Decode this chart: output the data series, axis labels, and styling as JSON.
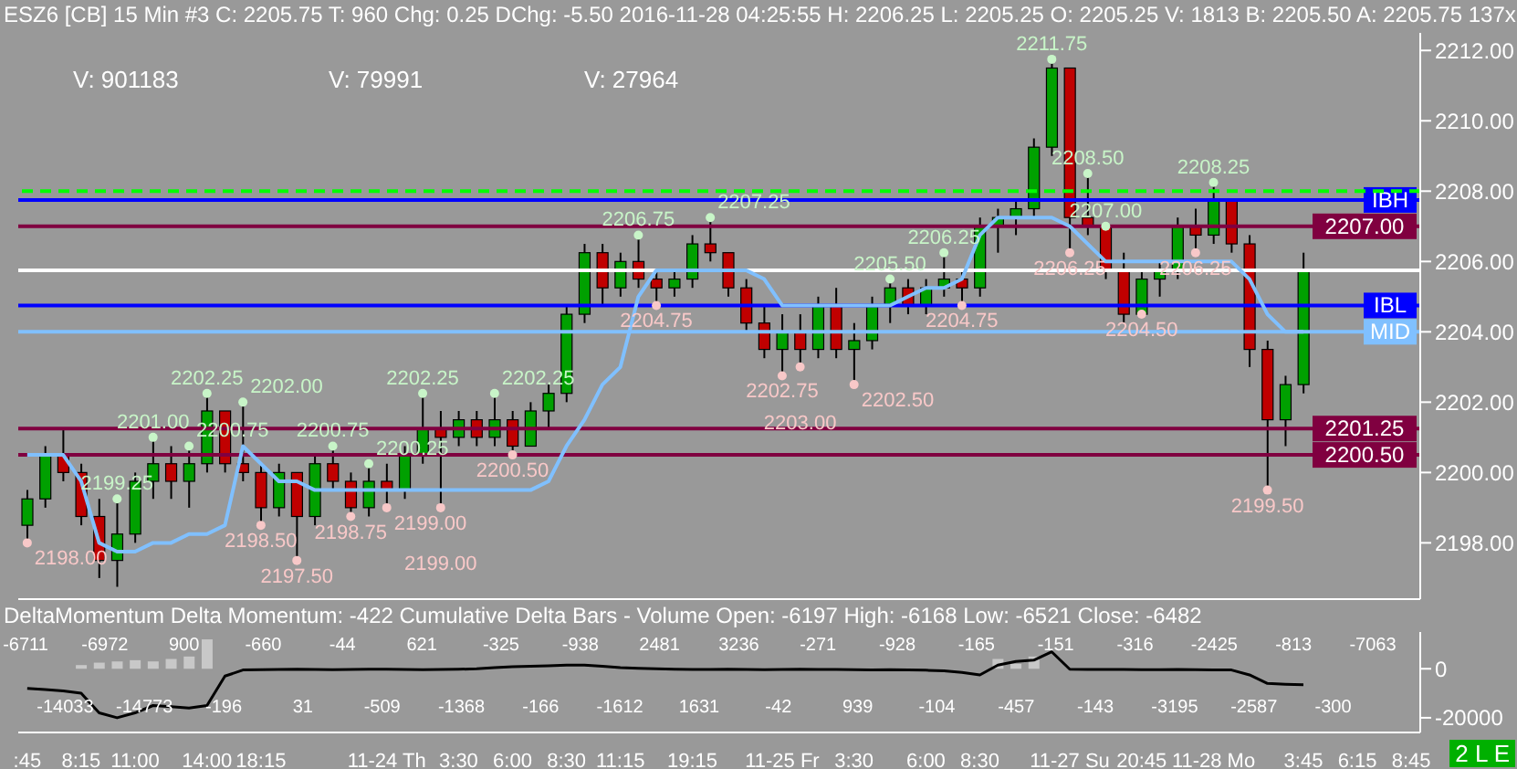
{
  "chart_data": [
    {
      "type": "candlestick",
      "title": "ESZ6 [CB]  15 Min  #3 C: 2205.75 T: 960 Chg: 0.25 DChg: -5.50 2016-11-28 04:25:55 H: 2206.25 L: 2205.25 O: 2205.25 V: 1813 B: 2205.50 A: 2205.75 137x",
      "categories": [
        ":45",
        null,
        null,
        "8:15",
        null,
        null,
        "11:00",
        null,
        null,
        null,
        "14:00",
        null,
        null,
        "18:15",
        null,
        null,
        null,
        null,
        null,
        null,
        "11-24 Th",
        null,
        null,
        null,
        "3:30",
        null,
        null,
        "6:00",
        null,
        null,
        "8:30",
        null,
        null,
        "11:15",
        null,
        null,
        null,
        "19:15",
        null,
        null,
        null,
        null,
        "11-25 Fr",
        null,
        null,
        null,
        "3:30",
        null,
        null,
        null,
        "6:00",
        null,
        null,
        "8:30",
        null,
        null,
        null,
        null,
        "11-27 Su",
        null,
        null,
        null,
        "20:45",
        null,
        null,
        null,
        "11-28 Mo",
        null,
        null,
        null,
        null,
        "3:45",
        null,
        null,
        "6:15",
        null,
        null,
        "8:45"
      ],
      "ohlc": [
        [
          2198.5,
          2199.5,
          2198,
          2199.25
        ],
        [
          2199.25,
          2200.75,
          2199,
          2200.5
        ],
        [
          2200.5,
          2201.25,
          2199.75,
          2200
        ],
        [
          2200,
          2200.25,
          2198.5,
          2198.75
        ],
        [
          2198.75,
          2199.25,
          2197,
          2197.5
        ],
        [
          2197.5,
          2199.25,
          2196.75,
          2198.25
        ],
        [
          2198.25,
          2200,
          2198,
          2199.75
        ],
        [
          2199.75,
          2201,
          2199.25,
          2200.25
        ],
        [
          2200.25,
          2200.75,
          2199.25,
          2199.75
        ],
        [
          2199.75,
          2200.75,
          2199,
          2200.25
        ],
        [
          2200.25,
          2202.25,
          2200,
          2201.75
        ],
        [
          2201.75,
          2201.75,
          2200,
          2200.25
        ],
        [
          2200.25,
          2202,
          2199.75,
          2200
        ],
        [
          2200,
          2200.25,
          2198.5,
          2199
        ],
        [
          2199,
          2200.25,
          2198.75,
          2200
        ],
        [
          2200,
          2200,
          2197.5,
          2198.75
        ],
        [
          2198.75,
          2200.5,
          2198.5,
          2200.25
        ],
        [
          2200.25,
          2200.75,
          2199.5,
          2199.75
        ],
        [
          2199.75,
          2200,
          2198.75,
          2199
        ],
        [
          2199,
          2200.25,
          2198.75,
          2199.75
        ],
        [
          2199.75,
          2200.25,
          2199,
          2199.5
        ],
        [
          2199.5,
          2200.75,
          2199.25,
          2200.5
        ],
        [
          2200.5,
          2202.25,
          2200.25,
          2201.25
        ],
        [
          2201.25,
          2201.75,
          2199,
          2201
        ],
        [
          2201,
          2201.75,
          2200.75,
          2201.5
        ],
        [
          2201.5,
          2201.75,
          2200.75,
          2201
        ],
        [
          2201,
          2202.25,
          2200.75,
          2201.5
        ],
        [
          2201.5,
          2201.75,
          2200.5,
          2200.75
        ],
        [
          2200.75,
          2202,
          2200.75,
          2201.75
        ],
        [
          2201.75,
          2202.5,
          2201.25,
          2202.25
        ],
        [
          2202.25,
          2204.75,
          2202,
          2204.5
        ],
        [
          2204.5,
          2206.5,
          2204.25,
          2206.25
        ],
        [
          2206.25,
          2206.5,
          2204.75,
          2205.25
        ],
        [
          2205.25,
          2206.25,
          2205,
          2206
        ],
        [
          2206,
          2206.75,
          2205.25,
          2205.5
        ],
        [
          2205.5,
          2205.75,
          2204.75,
          2205.25
        ],
        [
          2205.25,
          2205.75,
          2205,
          2205.5
        ],
        [
          2205.5,
          2206.75,
          2205.25,
          2206.5
        ],
        [
          2206.5,
          2207.25,
          2206,
          2206.25
        ],
        [
          2206.25,
          2206.25,
          2205,
          2205.25
        ],
        [
          2205.25,
          2205.5,
          2204,
          2204.25
        ],
        [
          2204.25,
          2204.75,
          2203.25,
          2203.5
        ],
        [
          2203.5,
          2204.5,
          2202.75,
          2204
        ],
        [
          2204,
          2204.5,
          2203,
          2203.5
        ],
        [
          2203.5,
          2205,
          2203.25,
          2204.75
        ],
        [
          2204.75,
          2205.25,
          2203.25,
          2203.5
        ],
        [
          2203.5,
          2204.25,
          2202.5,
          2203.75
        ],
        [
          2203.75,
          2205,
          2203.5,
          2204.75
        ],
        [
          2204.75,
          2205.5,
          2204.25,
          2205.25
        ],
        [
          2205.25,
          2205.5,
          2204.5,
          2204.75
        ],
        [
          2204.75,
          2205.5,
          2204.5,
          2205.25
        ],
        [
          2205.25,
          2206.25,
          2205,
          2205.5
        ],
        [
          2205.5,
          2205.75,
          2204.75,
          2205.25
        ],
        [
          2205.25,
          2207.25,
          2205,
          2207
        ],
        [
          2207,
          2207.5,
          2206.25,
          2207.25
        ],
        [
          2207.25,
          2207.75,
          2206.75,
          2207.5
        ],
        [
          2207.5,
          2209.5,
          2207.25,
          2209.25
        ],
        [
          2209.25,
          2211.75,
          2209,
          2211.5
        ],
        [
          2211.5,
          2211.5,
          2206.25,
          2207.25
        ],
        [
          2207.25,
          2208.5,
          2206.75,
          2207
        ],
        [
          2207,
          2207,
          2205.5,
          2205.75
        ],
        [
          2205.75,
          2206.25,
          2204.25,
          2204.5
        ],
        [
          2204.5,
          2205.75,
          2204.5,
          2205.5
        ],
        [
          2205.5,
          2206,
          2205,
          2205.75
        ],
        [
          2205.75,
          2207.25,
          2205.5,
          2207
        ],
        [
          2207,
          2207.5,
          2206.25,
          2206.75
        ],
        [
          2206.75,
          2208.25,
          2206.5,
          2207.75
        ],
        [
          2207.75,
          2207.75,
          2206.25,
          2206.5
        ],
        [
          2206.5,
          2206.75,
          2203,
          2203.5
        ],
        [
          2203.5,
          2203.75,
          2199.5,
          2201.5
        ],
        [
          2201.5,
          2202.75,
          2200.75,
          2202.5
        ],
        [
          2202.5,
          2206.25,
          2202.25,
          2205.75
        ],
        null,
        null,
        null,
        null,
        null,
        null
      ],
      "colors": [
        "#00a000",
        "#00a000",
        "#c00000",
        "#c00000",
        "#c00000",
        "#00a000",
        "#00a000",
        "#00a000",
        "#c00000",
        "#00a000",
        "#00a000",
        "#c00000",
        "#c00000",
        "#c00000",
        "#00a000",
        "#c00000",
        "#00a000",
        "#c00000",
        "#c00000",
        "#00a000",
        "#c00000",
        "#00a000",
        "#00a000",
        "#c00000",
        "#00a000",
        "#c00000",
        "#00a000",
        "#c00000",
        "#00a000",
        "#00a000",
        "#00a000",
        "#00a000",
        "#c00000",
        "#00a000",
        "#c00000",
        "#c00000",
        "#00a000",
        "#00a000",
        "#c00000",
        "#c00000",
        "#c00000",
        "#c00000",
        "#00a000",
        "#c00000",
        "#00a000",
        "#c00000",
        "#00a000",
        "#00a000",
        "#00a000",
        "#c00000",
        "#00a000",
        "#00a000",
        "#c00000",
        "#00a000",
        "#00a000",
        "#00a000",
        "#00a000",
        "#00a000",
        "#c00000",
        "#c00000",
        "#c00000",
        "#c00000",
        "#00a000",
        "#00a000",
        "#00a000",
        "#c00000",
        "#00a000",
        "#c00000",
        "#c00000",
        "#c00000",
        "#00a000",
        "#00a000",
        null,
        null,
        null,
        null,
        null,
        null
      ],
      "series": [
        {
          "type": "line",
          "color": "#80c0ff",
          "values": [
            2200.5,
            2200.5,
            2200.5,
            2199.75,
            2198,
            2197.75,
            2197.75,
            2198,
            2198,
            2198.25,
            2198.25,
            2198.5,
            2200.75,
            2200.25,
            2199.75,
            2199.75,
            2199.5,
            2199.5,
            2199.5,
            2199.5,
            2199.5,
            2199.5,
            2199.5,
            2199.5,
            2199.5,
            2199.5,
            2199.5,
            2199.5,
            2199.5,
            2199.75,
            2200.75,
            2201.5,
            2202.5,
            2203,
            2205,
            2205.75,
            2205.75,
            2205.75,
            2205.75,
            2205.75,
            2205.75,
            2205.5,
            2204.75,
            2204.75,
            2204.75,
            2204.75,
            2204.75,
            2204.75,
            2204.75,
            2205,
            2205.25,
            2205.25,
            2205.5,
            2206.75,
            2207.25,
            2207.25,
            2207.25,
            2207.25,
            2207,
            2206.5,
            2206,
            2206,
            2206,
            2206,
            2206,
            2206,
            2206,
            2206,
            2205.5,
            2204.5,
            2204,
            2204,
            null,
            null,
            null,
            null,
            null,
            null
          ]
        },
        {
          "type": "scatter",
          "color": "#c8f5c8",
          "marker": "circle",
          "values": [
            null,
            null,
            null,
            null,
            null,
            2199.25,
            null,
            2201,
            null,
            2200.75,
            2202.25,
            null,
            2202,
            null,
            null,
            null,
            null,
            2200.75,
            null,
            2200.25,
            null,
            null,
            2202.25,
            null,
            null,
            null,
            2202.25,
            null,
            null,
            null,
            null,
            null,
            null,
            null,
            2206.75,
            null,
            null,
            null,
            2207.25,
            null,
            null,
            null,
            null,
            null,
            null,
            null,
            null,
            null,
            2205.5,
            null,
            null,
            2206.25,
            null,
            null,
            null,
            null,
            null,
            2211.75,
            null,
            2208.5,
            2207,
            null,
            null,
            null,
            null,
            null,
            2208.25,
            null,
            null,
            null,
            null,
            null,
            null,
            null,
            null,
            null,
            null,
            null
          ],
          "value_labels": [
            null,
            null,
            null,
            null,
            null,
            "2199.25",
            null,
            "2201.00",
            null,
            "2200.75",
            "2202.25",
            null,
            "2202.00",
            null,
            null,
            null,
            null,
            "2200.75",
            null,
            "2200.25",
            null,
            null,
            "2202.25",
            null,
            null,
            null,
            "2202.25",
            null,
            null,
            null,
            null,
            null,
            null,
            null,
            "2206.75",
            null,
            null,
            null,
            "2207.25",
            null,
            null,
            null,
            null,
            null,
            null,
            null,
            null,
            null,
            "2205.50",
            null,
            null,
            "2206.25",
            null,
            null,
            null,
            null,
            null,
            "2211.75",
            null,
            "2208.50",
            "2207.00",
            null,
            null,
            null,
            null,
            null,
            "2208.25",
            null,
            null,
            null,
            null,
            null,
            null,
            null,
            null,
            null,
            null,
            null
          ]
        },
        {
          "type": "scatter",
          "color": "#f8c8c8",
          "marker": "circle",
          "values": [
            2198,
            null,
            null,
            null,
            null,
            null,
            null,
            null,
            null,
            null,
            null,
            null,
            null,
            2198.5,
            null,
            2197.5,
            null,
            null,
            2198.75,
            null,
            2199,
            null,
            null,
            2199,
            null,
            null,
            null,
            2200.5,
            null,
            null,
            null,
            null,
            null,
            null,
            null,
            2204.75,
            null,
            null,
            null,
            null,
            null,
            null,
            2202.75,
            2203,
            null,
            null,
            2202.5,
            null,
            null,
            null,
            null,
            null,
            2204.75,
            null,
            null,
            null,
            null,
            null,
            2206.25,
            null,
            null,
            null,
            2204.5,
            null,
            null,
            2206.25,
            null,
            null,
            null,
            2199.5,
            null,
            null,
            null,
            null,
            null,
            null,
            null,
            null
          ],
          "value_labels": [
            "2198.00",
            null,
            null,
            null,
            null,
            null,
            null,
            null,
            null,
            null,
            null,
            null,
            null,
            "2198.50",
            null,
            "2197.50",
            null,
            null,
            "2198.75",
            null,
            "2199.00",
            null,
            null,
            "2199.00",
            null,
            null,
            null,
            "2200.50",
            null,
            null,
            null,
            null,
            null,
            null,
            null,
            "2204.75",
            null,
            null,
            null,
            null,
            null,
            null,
            "2202.75",
            "2203.00",
            null,
            null,
            "2202.50",
            null,
            null,
            null,
            null,
            null,
            "2204.75",
            null,
            null,
            null,
            null,
            null,
            "2206.25",
            null,
            null,
            null,
            "2204.50",
            null,
            null,
            "2206.25",
            null,
            null,
            null,
            "2199.50",
            null,
            null,
            null,
            null,
            null,
            null,
            null,
            null
          ]
        }
      ],
      "ylim": [
        2196.4,
        2212.5
      ],
      "yticks": [
        {
          "value": 2198,
          "label": "2198.00"
        },
        {
          "value": 2200,
          "label": "2200.00"
        },
        {
          "value": 2202,
          "label": "2202.00"
        },
        {
          "value": 2204,
          "label": "2204.00"
        },
        {
          "value": 2206,
          "label": "2206.00"
        },
        {
          "value": 2208,
          "label": "2208.00"
        },
        {
          "value": 2210,
          "label": "2210.00"
        },
        {
          "value": 2212,
          "label": "2212.00"
        }
      ],
      "ref_lines": [
        {
          "axis": "y",
          "value": 2207.75,
          "label": "IBH",
          "color": "#0000ff"
        },
        {
          "axis": "y",
          "value": 2204.75,
          "label": "IBL",
          "color": "#0000ff"
        },
        {
          "axis": "y",
          "value": 2204,
          "label": "MID",
          "color": "#80c0ff"
        },
        {
          "axis": "y",
          "value": 2207,
          "label": "2207.00",
          "color": "#800040"
        },
        {
          "axis": "y",
          "value": 2201.25,
          "label": "2201.25",
          "color": "#800040"
        },
        {
          "axis": "y",
          "value": 2200.5,
          "label": "2200.50",
          "color": "#800040"
        },
        {
          "axis": "y",
          "value": 2205.75,
          "label": null,
          "color": "#ffffff"
        },
        {
          "axis": "y",
          "value": 2208,
          "label": null,
          "color": "#00ff00",
          "line_style": "dashed"
        }
      ],
      "annotations": [
        "V: 901183",
        "V: 79991",
        "V: 27964"
      ],
      "tick_labels": "y"
    },
    {
      "type": "line",
      "title": "DeltaMomentum  Delta Momentum: -422  Cumulative Delta Bars - Volume  Open: -6197  High: -6168  Low: -6521  Close: -6482",
      "series": [
        {
          "type": "bar",
          "color": "#c8c8c8",
          "values": [
            null,
            null,
            null,
            1500,
            2500,
            3000,
            3500,
            3000,
            4000,
            5000,
            12000,
            null,
            null,
            null,
            null,
            null,
            null,
            null,
            null,
            null,
            null,
            null,
            null,
            null,
            null,
            null,
            null,
            null,
            null,
            null,
            null,
            null,
            null,
            null,
            null,
            null,
            null,
            null,
            null,
            null,
            null,
            null,
            null,
            null,
            null,
            null,
            null,
            null,
            null,
            null,
            null,
            null,
            null,
            null,
            4000,
            2000,
            5000,
            null,
            null,
            null,
            null,
            null,
            null,
            null,
            null,
            null,
            null,
            null,
            null,
            null,
            null,
            null,
            null,
            null,
            null,
            null,
            null,
            null
          ]
        },
        {
          "type": "line",
          "color": "#000000",
          "values": [
            -8000,
            -8500,
            -9000,
            -10000,
            -18000,
            -20000,
            -18000,
            -15000,
            -15500,
            -16000,
            -15000,
            -3000,
            -500,
            -400,
            -300,
            -200,
            -300,
            -400,
            -300,
            -200,
            -200,
            -300,
            -400,
            -300,
            -200,
            0,
            500,
            800,
            1000,
            1200,
            1500,
            1500,
            1000,
            500,
            200,
            0,
            -200,
            -300,
            -300,
            -200,
            -300,
            -400,
            -300,
            -200,
            -300,
            -300,
            -400,
            -500,
            -400,
            -500,
            -600,
            -800,
            -1500,
            -2500,
            1500,
            3000,
            3500,
            6900,
            -200,
            -300,
            -300,
            -300,
            -400,
            -400,
            -300,
            -400,
            -500,
            -500,
            -2500,
            -6000,
            -6300,
            -6500,
            null,
            null,
            null,
            null,
            null,
            null
          ]
        }
      ],
      "ylim": [
        -26000,
        15000
      ],
      "yticks": [
        0,
        -20000
      ],
      "annotations": [
        "-6711",
        "-14033",
        "-6972",
        "-14773",
        "900",
        "-196",
        "-660",
        "31",
        "-44",
        "-509",
        "621",
        "-1368",
        "-325",
        "-166",
        "-938",
        "-1612",
        "2481",
        "1631",
        "3236",
        "-42",
        "-271",
        "939",
        "-928",
        "-104",
        "-165",
        "-457",
        "-151",
        "-143",
        "-316",
        "-3195",
        "-2425",
        "-2587",
        "-813",
        "-300",
        "-7063",
        "2 L E"
      ]
    }
  ]
}
